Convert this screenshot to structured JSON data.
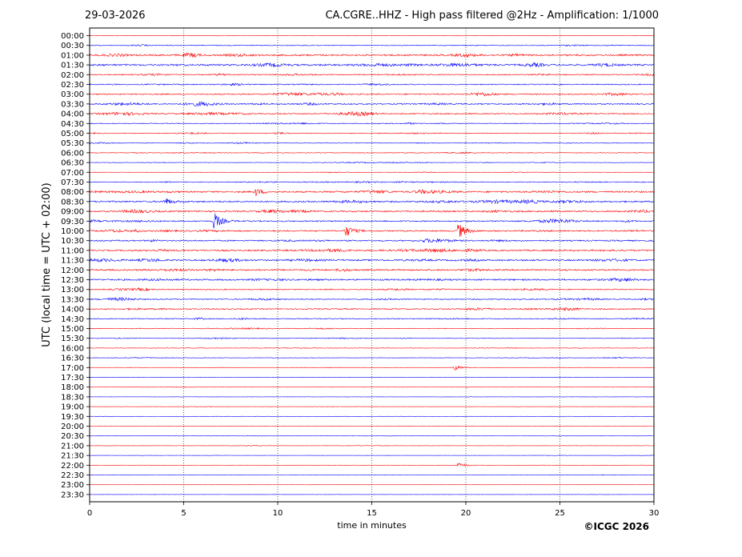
{
  "header": {
    "date": "29-03-2026",
    "title": "CA.CGRE..HHZ - High pass filtered @2Hz - Amplification: 1/1000"
  },
  "credit": "©ICGC 2026",
  "chart_data": {
    "type": "line",
    "title": "CA.CGRE..HHZ - High pass filtered @2Hz - Amplification: 1/1000",
    "xlabel": "time in minutes",
    "ylabel": "UTC (local time = UTC + 02:00)",
    "xlim": [
      0,
      30
    ],
    "x_ticks": [
      0,
      5,
      10,
      15,
      20,
      25,
      30
    ],
    "grid": "vertical dotted lines at x ticks",
    "y_categories": [
      "00:00",
      "00:30",
      "01:00",
      "01:30",
      "02:00",
      "02:30",
      "03:00",
      "03:30",
      "04:00",
      "04:30",
      "05:00",
      "05:30",
      "06:00",
      "06:30",
      "07:00",
      "07:30",
      "08:00",
      "08:30",
      "09:00",
      "09:30",
      "10:00",
      "10:30",
      "11:00",
      "11:30",
      "12:00",
      "12:30",
      "13:00",
      "13:30",
      "14:00",
      "14:30",
      "15:00",
      "15:30",
      "16:00",
      "16:30",
      "17:00",
      "17:30",
      "18:00",
      "18:30",
      "19:00",
      "19:30",
      "20:00",
      "20:30",
      "21:00",
      "21:30",
      "22:00",
      "22:30",
      "23:00",
      "23:30"
    ],
    "trace_colors": [
      "#ff0000",
      "#0000ff"
    ],
    "relative_noise_level": [
      0.15,
      0.35,
      0.75,
      0.8,
      0.45,
      0.45,
      0.55,
      0.6,
      0.55,
      0.35,
      0.35,
      0.3,
      0.3,
      0.2,
      0.2,
      0.35,
      0.7,
      0.7,
      0.7,
      0.55,
      0.6,
      0.6,
      0.7,
      0.7,
      0.7,
      0.7,
      0.45,
      0.45,
      0.5,
      0.4,
      0.3,
      0.25,
      0.2,
      0.2,
      0.15,
      0.1,
      0.1,
      0.1,
      0.08,
      0.08,
      0.08,
      0.1,
      0.12,
      0.08,
      0.08,
      0.1,
      0.05,
      0.05
    ],
    "events": [
      {
        "row": "09:30",
        "x_min": 6.6,
        "amplitude": 1.0
      },
      {
        "row": "10:00",
        "x_min": 13.6,
        "amplitude": 0.7
      },
      {
        "row": "10:00",
        "x_min": 19.6,
        "amplitude": 0.9
      },
      {
        "row": "08:00",
        "x_min": 8.8,
        "amplitude": 0.45
      },
      {
        "row": "08:30",
        "x_min": 4.0,
        "amplitude": 0.4
      },
      {
        "row": "22:00",
        "x_min": 19.6,
        "amplitude": 0.35
      },
      {
        "row": "17:00",
        "x_min": 19.4,
        "amplitude": 0.3
      }
    ]
  }
}
